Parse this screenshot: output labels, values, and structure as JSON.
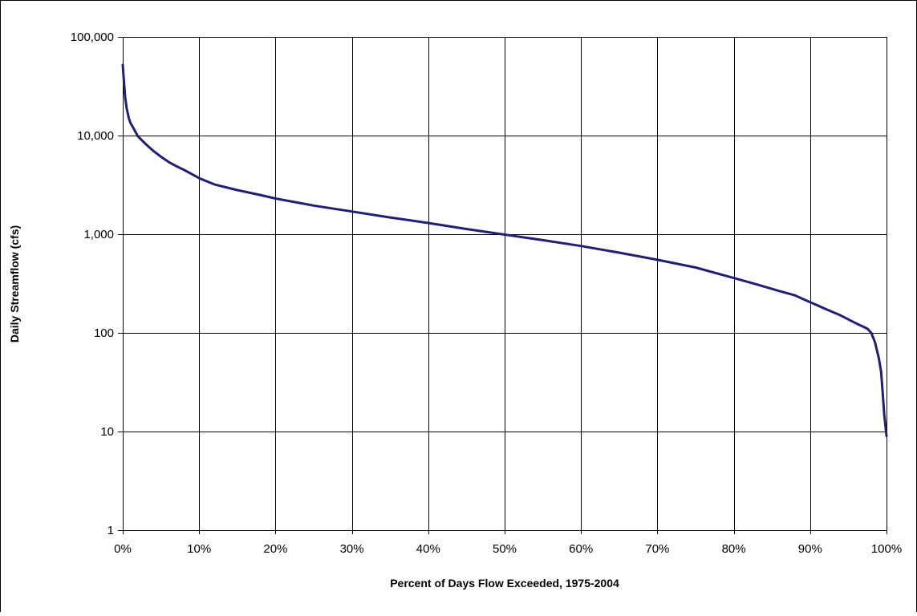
{
  "chart_data": {
    "type": "line",
    "title": "",
    "xlabel": "Percent of Days Flow Exceeded, 1975-2004",
    "ylabel": "Daily Streamflow (cfs)",
    "xlim": [
      0,
      100
    ],
    "ylim": [
      1,
      100000
    ],
    "y_scale": "log",
    "grid": true,
    "legend": "none",
    "x_ticks": [
      0,
      10,
      20,
      30,
      40,
      50,
      60,
      70,
      80,
      90,
      100
    ],
    "x_tick_labels": [
      "0%",
      "10%",
      "20%",
      "30%",
      "40%",
      "50%",
      "60%",
      "70%",
      "80%",
      "90%",
      "100%"
    ],
    "y_ticks": [
      1,
      10,
      100,
      1000,
      10000,
      100000
    ],
    "y_tick_labels": [
      "1",
      "10",
      "100",
      "1,000",
      "10,000",
      "100,000"
    ],
    "series": [
      {
        "color": "#1f1f7a",
        "x": [
          0,
          0.1,
          0.3,
          0.5,
          0.8,
          1,
          1.5,
          2,
          3,
          4,
          5,
          6,
          7,
          8,
          10,
          12,
          15,
          18,
          20,
          25,
          30,
          35,
          40,
          45,
          50,
          55,
          60,
          65,
          70,
          75,
          80,
          83,
          86,
          88,
          90,
          92,
          94,
          96,
          97,
          97.5,
          98,
          98.5,
          99,
          99.3,
          99.5,
          99.7,
          100
        ],
        "y": [
          52000,
          40000,
          25000,
          19000,
          15000,
          13500,
          11500,
          9800,
          8200,
          7000,
          6100,
          5400,
          4900,
          4500,
          3700,
          3200,
          2800,
          2500,
          2300,
          1950,
          1700,
          1480,
          1300,
          1130,
          990,
          870,
          760,
          650,
          550,
          460,
          360,
          310,
          265,
          240,
          205,
          175,
          150,
          125,
          115,
          110,
          100,
          80,
          55,
          40,
          25,
          15,
          9
        ]
      }
    ]
  }
}
